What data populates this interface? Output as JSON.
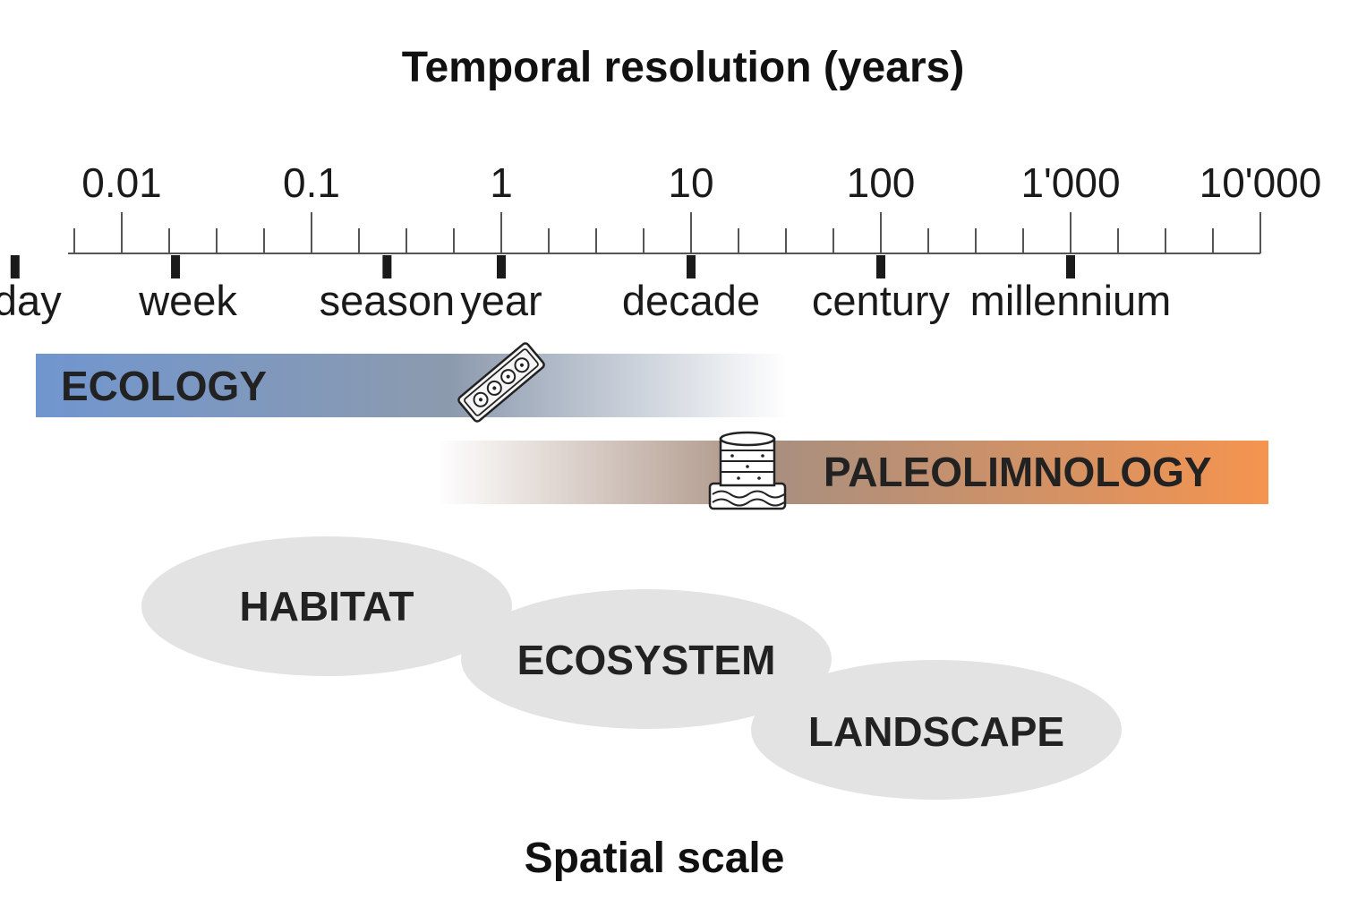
{
  "header": {
    "title": "Temporal resolution (years)"
  },
  "axis": {
    "scale": "log",
    "major_ticks": [
      {
        "value": 0.01,
        "label": "0.01"
      },
      {
        "value": 0.1,
        "label": "0.1"
      },
      {
        "value": 1,
        "label": "1"
      },
      {
        "value": 10,
        "label": "10"
      },
      {
        "value": 100,
        "label": "100"
      },
      {
        "value": 1000,
        "label": "1'000"
      },
      {
        "value": 10000,
        "label": "10'000"
      }
    ],
    "periods": [
      {
        "label": "day",
        "value": 0.00274
      },
      {
        "label": "week",
        "value": 0.0192
      },
      {
        "label": "season",
        "value": 0.25
      },
      {
        "label": "year",
        "value": 1
      },
      {
        "label": "decade",
        "value": 10
      },
      {
        "label": "century",
        "value": 100
      },
      {
        "label": "millennium",
        "value": 1000
      }
    ]
  },
  "bands": {
    "ecology": {
      "label": "ECOLOGY",
      "icon": "sediment-trap-icon",
      "color_start": "#7096cf",
      "color_mid": "#8c9aae",
      "color_end": "#ffffff"
    },
    "paleolimnology": {
      "label": "PALEOLIMNOLOGY",
      "icon": "sediment-core-icon",
      "color_start": "#ffffff",
      "color_mid": "#a88f80",
      "color_end": "#f5944f"
    }
  },
  "spatial": {
    "title": "Spatial scale",
    "scales": [
      "HABITAT",
      "ECOSYSTEM",
      "LANDSCAPE"
    ],
    "fill_color": "#e3e3e3"
  }
}
